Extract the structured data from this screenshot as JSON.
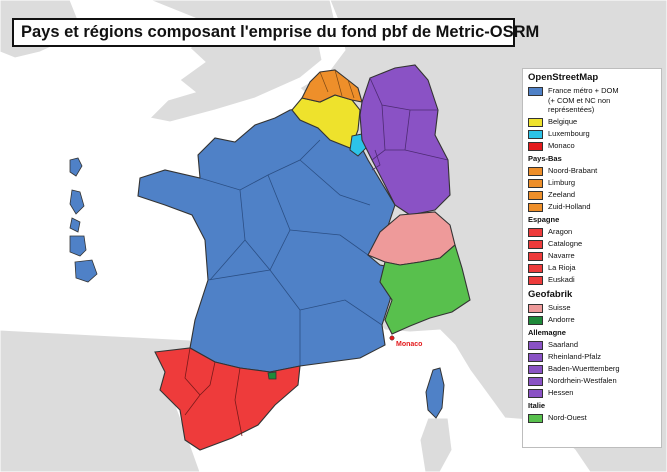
{
  "title": "Pays et régions composant l'emprise du fond pbf de Metric-OSRM",
  "map_label_monaco": "Monaco",
  "colors": {
    "france": "#4f81c7",
    "belgique": "#eee22c",
    "luxembourg": "#2cc3e8",
    "monaco": "#e31a1c",
    "pays_bas": "#ee8f2a",
    "espagne": "#ee3b3b",
    "suisse": "#ee9a9a",
    "andorre": "#1f8a3a",
    "allemagne": "#8a52c5",
    "italie": "#58c04d",
    "land": "#dcdcdc",
    "sea": "#ffffff",
    "border": "#333333"
  },
  "legend": {
    "groups": [
      {
        "title": "OpenStreetMap",
        "items": [
          {
            "label": "France métro + DOM",
            "label2": "(+ COM et NC non représentées)",
            "color": "#4f81c7"
          },
          {
            "label": "Belgique",
            "color": "#eee22c"
          },
          {
            "label": "Luxembourg",
            "color": "#2cc3e8"
          },
          {
            "label": "Monaco",
            "color": "#e31a1c"
          }
        ],
        "subgroups": [
          {
            "title": "Pays-Bas",
            "items": [
              {
                "label": "Noord-Brabant",
                "color": "#ee8f2a"
              },
              {
                "label": "Limburg",
                "color": "#ee8f2a"
              },
              {
                "label": "Zeeland",
                "color": "#ee8f2a"
              },
              {
                "label": "Zuid-Holland",
                "color": "#ee8f2a"
              }
            ]
          },
          {
            "title": "Espagne",
            "items": [
              {
                "label": "Aragon",
                "color": "#ee3b3b"
              },
              {
                "label": "Catalogne",
                "color": "#ee3b3b"
              },
              {
                "label": "Navarre",
                "color": "#ee3b3b"
              },
              {
                "label": "La Rioja",
                "color": "#ee3b3b"
              },
              {
                "label": "Euskadi",
                "color": "#ee3b3b"
              }
            ]
          }
        ]
      },
      {
        "title": "Geofabrik",
        "items": [
          {
            "label": "Suisse",
            "color": "#ee9a9a"
          },
          {
            "label": "Andorre",
            "color": "#1f8a3a"
          }
        ],
        "subgroups": [
          {
            "title": "Allemagne",
            "items": [
              {
                "label": "Saarland",
                "color": "#8a52c5"
              },
              {
                "label": "Rheinland-Pfalz",
                "color": "#8a52c5"
              },
              {
                "label": "Baden-Wuerttemberg",
                "color": "#8a52c5"
              },
              {
                "label": "Nordrhein-Westfalen",
                "color": "#8a52c5"
              },
              {
                "label": "Hessen",
                "color": "#8a52c5"
              }
            ]
          },
          {
            "title": "Italie",
            "items": [
              {
                "label": "Nord-Ouest",
                "color": "#58c04d"
              }
            ]
          }
        ]
      }
    ]
  }
}
